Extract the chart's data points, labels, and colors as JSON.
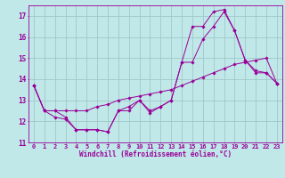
{
  "xlabel": "Windchill (Refroidissement éolien,°C)",
  "background_color": "#c0e8e8",
  "grid_color": "#a0c8c8",
  "line_color": "#990099",
  "xlim": [
    -0.5,
    23.5
  ],
  "ylim": [
    11,
    17.5
  ],
  "yticks": [
    11,
    12,
    13,
    14,
    15,
    16,
    17
  ],
  "xticks": [
    0,
    1,
    2,
    3,
    4,
    5,
    6,
    7,
    8,
    9,
    10,
    11,
    12,
    13,
    14,
    15,
    16,
    17,
    18,
    19,
    20,
    21,
    22,
    23
  ],
  "series": [
    [
      13.7,
      12.5,
      12.2,
      12.1,
      11.6,
      11.6,
      11.6,
      11.5,
      12.5,
      12.5,
      13.0,
      12.5,
      12.7,
      13.0,
      14.8,
      14.8,
      15.9,
      16.5,
      17.2,
      16.3,
      14.9,
      14.4,
      14.3,
      13.8
    ],
    [
      13.7,
      12.5,
      12.5,
      12.5,
      12.5,
      12.5,
      12.7,
      12.8,
      13.0,
      13.1,
      13.2,
      13.3,
      13.4,
      13.5,
      13.7,
      13.9,
      14.1,
      14.3,
      14.5,
      14.7,
      14.8,
      14.9,
      15.0,
      13.8
    ],
    [
      13.7,
      12.5,
      12.5,
      12.2,
      11.6,
      11.6,
      11.6,
      11.5,
      12.5,
      12.7,
      13.0,
      12.4,
      12.7,
      13.0,
      14.8,
      16.5,
      16.5,
      17.2,
      17.3,
      16.3,
      14.9,
      14.3,
      14.3,
      13.8
    ]
  ],
  "tick_fontsize": 5.0,
  "xlabel_fontsize": 5.5,
  "ytick_fontsize": 5.5
}
